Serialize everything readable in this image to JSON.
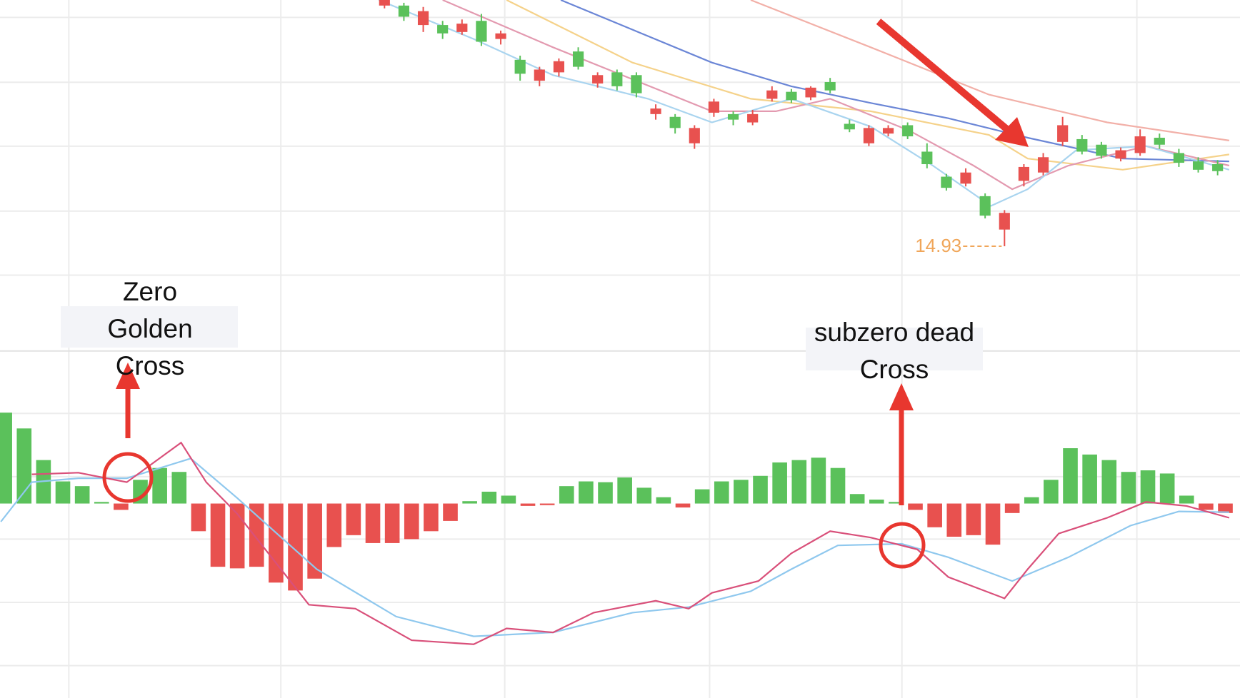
{
  "chart_data": [
    {
      "type": "candlestick",
      "xlim": [
        -0.245,
        63.755
      ],
      "ylim": [
        14.2,
        16.7
      ],
      "up_color": "#e8514f",
      "down_color": "#5bc15b",
      "x": [
        19.6,
        20.6,
        21.6,
        22.6,
        23.6,
        24.6,
        25.6,
        26.6,
        27.6,
        28.6,
        29.6,
        30.6,
        31.6,
        32.6,
        33.6,
        34.6,
        35.6,
        36.6,
        37.6,
        38.6,
        39.6,
        40.6,
        41.6,
        42.6,
        43.6,
        44.6,
        45.6,
        46.6,
        47.6,
        48.6,
        49.6,
        50.6,
        51.6,
        52.6,
        53.6,
        54.6,
        55.6,
        56.6,
        57.6,
        58.6,
        59.6,
        60.6,
        61.6,
        62.6
      ],
      "open": [
        16.66,
        16.66,
        16.52,
        16.52,
        16.47,
        16.55,
        16.42,
        16.27,
        16.12,
        16.18,
        16.33,
        16.1,
        16.18,
        16.16,
        15.88,
        15.86,
        15.67,
        15.89,
        15.88,
        15.82,
        15.99,
        16.04,
        16.0,
        16.11,
        15.81,
        15.67,
        15.74,
        15.8,
        15.61,
        15.43,
        15.38,
        15.29,
        15.05,
        15.4,
        15.46,
        15.68,
        15.7,
        15.66,
        15.56,
        15.6,
        15.71,
        15.6,
        15.54,
        15.52
      ],
      "close": [
        16.7,
        16.58,
        16.62,
        16.46,
        16.53,
        16.4,
        16.46,
        16.17,
        16.2,
        16.26,
        16.22,
        16.16,
        16.08,
        16.03,
        15.92,
        15.78,
        15.78,
        15.97,
        15.84,
        15.88,
        16.05,
        15.98,
        16.07,
        16.05,
        15.77,
        15.78,
        15.78,
        15.72,
        15.52,
        15.35,
        15.46,
        15.15,
        15.17,
        15.5,
        15.57,
        15.8,
        15.61,
        15.58,
        15.62,
        15.72,
        15.66,
        15.53,
        15.48,
        15.47
      ],
      "high": [
        16.72,
        16.68,
        16.65,
        16.55,
        16.56,
        16.6,
        16.48,
        16.3,
        16.22,
        16.28,
        16.36,
        16.18,
        16.2,
        16.18,
        15.95,
        15.88,
        15.8,
        15.99,
        15.9,
        15.91,
        16.08,
        16.06,
        16.08,
        16.14,
        15.84,
        15.8,
        15.8,
        15.82,
        15.67,
        15.45,
        15.49,
        15.31,
        15.19,
        15.52,
        15.6,
        15.86,
        15.73,
        15.68,
        15.64,
        15.77,
        15.74,
        15.63,
        15.57,
        15.55
      ],
      "low": [
        16.64,
        16.55,
        16.47,
        16.42,
        16.45,
        16.37,
        16.38,
        16.12,
        16.08,
        16.15,
        16.2,
        16.07,
        16.05,
        16.0,
        15.84,
        15.74,
        15.63,
        15.86,
        15.8,
        15.8,
        15.97,
        15.96,
        15.98,
        16.03,
        15.75,
        15.65,
        15.72,
        15.7,
        15.49,
        15.33,
        15.36,
        15.13,
        14.93,
        15.36,
        15.44,
        15.65,
        15.59,
        15.56,
        15.54,
        15.58,
        15.63,
        15.5,
        15.46,
        15.44
      ],
      "lines": [
        {
          "color": "#f2b0a8",
          "x": [
            38.5,
            44.7,
            50.8,
            56.9,
            63.2
          ],
          "values": [
            16.7,
            16.36,
            16.02,
            15.82,
            15.69
          ]
        },
        {
          "color": "#f5d28a",
          "x": [
            25.9,
            32.4,
            38.5,
            44.7,
            50.8,
            52.8,
            57.7,
            63.2
          ],
          "values": [
            16.7,
            16.25,
            15.99,
            15.9,
            15.73,
            15.56,
            15.48,
            15.59
          ]
        },
        {
          "color": "#6b86d6",
          "x": [
            28.7,
            36.5,
            40.6,
            44.7,
            48.7,
            52.8,
            57.7,
            63.2
          ],
          "values": [
            16.7,
            16.25,
            16.08,
            15.96,
            15.85,
            15.71,
            15.56,
            15.54
          ]
        },
        {
          "color": "#e39ab0",
          "x": [
            22.6,
            28.3,
            32.4,
            36.5,
            39.8,
            42.6,
            46.7,
            50.0,
            52.0,
            54.9,
            58.9,
            63.2
          ],
          "values": [
            16.7,
            16.36,
            16.13,
            15.9,
            15.9,
            15.99,
            15.76,
            15.51,
            15.34,
            15.51,
            15.65,
            15.51
          ]
        },
        {
          "color": "#a9d4ef",
          "x": [
            19.3,
            24.2,
            28.3,
            33.2,
            36.5,
            40.6,
            44.7,
            47.9,
            50.9,
            52.8,
            55.3,
            58.9,
            63.2
          ],
          "values": [
            16.7,
            16.42,
            16.16,
            15.99,
            15.82,
            15.99,
            15.79,
            15.51,
            15.22,
            15.34,
            15.62,
            15.65,
            15.48
          ]
        }
      ],
      "low_label": 14.93
    },
    {
      "type": "macd",
      "xlim": [
        -0.245,
        63.755
      ],
      "ylim": [
        -0.246,
        0.192
      ],
      "up_color": "#5bc15b",
      "down_color": "#e8514f",
      "values": [
        0.115,
        0.095,
        0.055,
        0.028,
        0.022,
        0.002,
        -0.008,
        0.03,
        0.045,
        0.04,
        -0.035,
        -0.08,
        -0.082,
        -0.08,
        -0.1,
        -0.11,
        -0.095,
        -0.055,
        -0.04,
        -0.05,
        -0.05,
        -0.045,
        -0.035,
        -0.022,
        0.003,
        0.015,
        0.01,
        -0.003,
        -0.002,
        0.022,
        0.028,
        0.027,
        0.033,
        0.02,
        0.008,
        -0.005,
        0.018,
        0.028,
        0.03,
        0.035,
        0.052,
        0.055,
        0.058,
        0.045,
        0.012,
        0.005,
        0.002,
        -0.008,
        -0.03,
        -0.042,
        -0.04,
        -0.052,
        -0.012,
        0.008,
        0.03,
        0.07,
        0.062,
        0.055,
        0.04,
        0.042,
        0.038,
        0.01,
        -0.008,
        -0.012
      ],
      "lines": [
        {
          "color": "#8fc8ee",
          "x": [
            -0.2,
            1.4,
            3.8,
            6.3,
            9.6,
            12.0,
            16.1,
            20.2,
            24.2,
            28.3,
            32.4,
            35.3,
            38.5,
            40.6,
            43.0,
            46.3,
            48.7,
            52.0,
            54.9,
            58.1,
            60.6,
            63.2
          ],
          "values": [
            -0.023,
            0.027,
            0.032,
            0.032,
            0.057,
            0.007,
            -0.083,
            -0.143,
            -0.168,
            -0.163,
            -0.138,
            -0.131,
            -0.111,
            -0.083,
            -0.053,
            -0.051,
            -0.068,
            -0.098,
            -0.068,
            -0.028,
            -0.01,
            -0.011
          ]
        },
        {
          "color": "#d9507a",
          "x": [
            1.4,
            3.8,
            6.3,
            9.1,
            10.4,
            12.0,
            15.7,
            18.1,
            21.0,
            24.2,
            25.9,
            28.3,
            30.4,
            33.6,
            35.3,
            36.5,
            38.9,
            40.6,
            42.6,
            44.7,
            47.1,
            48.7,
            51.6,
            52.8,
            54.4,
            56.9,
            58.9,
            61.0,
            63.2
          ],
          "values": [
            0.037,
            0.039,
            0.027,
            0.077,
            0.027,
            -0.013,
            -0.128,
            -0.133,
            -0.173,
            -0.178,
            -0.158,
            -0.163,
            -0.138,
            -0.123,
            -0.133,
            -0.113,
            -0.098,
            -0.063,
            -0.035,
            -0.043,
            -0.058,
            -0.093,
            -0.12,
            -0.083,
            -0.038,
            -0.018,
            0.002,
            -0.003,
            -0.018
          ]
        }
      ]
    }
  ],
  "annotations": [
    "Zero Golden Cross",
    "subzero dead Cross"
  ]
}
